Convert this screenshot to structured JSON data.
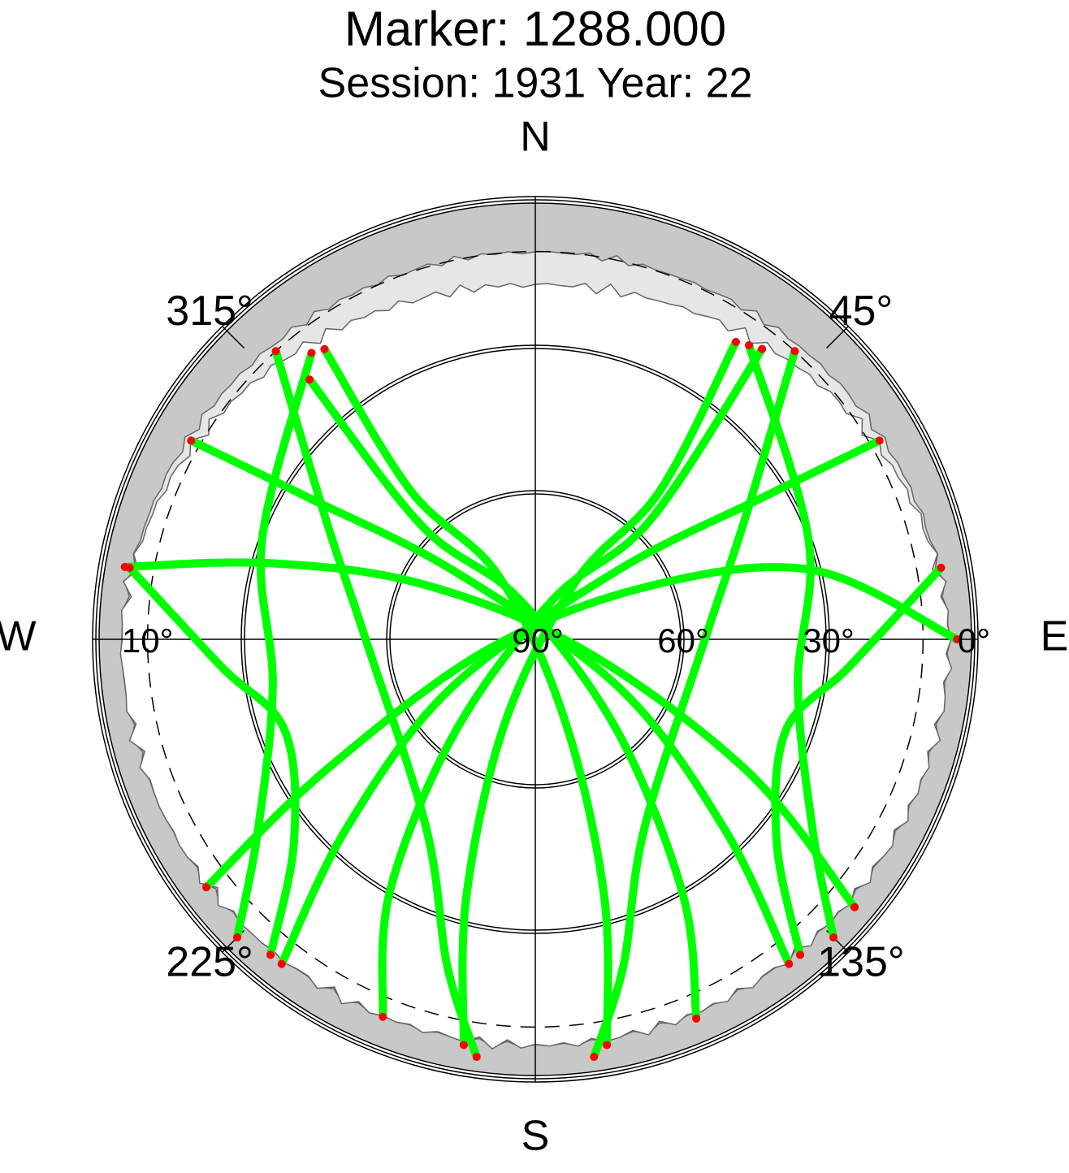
{
  "chart_data": {
    "type": "polar",
    "title": "Marker: 1288.000",
    "subtitle": "Session: 1931 Year: 22",
    "rlim": [
      90,
      0
    ],
    "cardinal": [
      {
        "value": 0,
        "label": "N"
      },
      {
        "value": 90,
        "label": "E"
      },
      {
        "value": 180,
        "label": "S"
      },
      {
        "value": 270,
        "label": "W"
      }
    ],
    "azimuth_ticks": [
      {
        "value": 45,
        "label": "45°"
      },
      {
        "value": 135,
        "label": "135°"
      },
      {
        "value": 225,
        "label": "225°"
      },
      {
        "value": 315,
        "label": "315°"
      }
    ],
    "elevation_ticks": [
      {
        "value": 0,
        "label": "0°"
      },
      {
        "value": 10,
        "label": "10°",
        "side": "W"
      },
      {
        "value": 30,
        "label": "30°"
      },
      {
        "value": 60,
        "label": "60°"
      },
      {
        "value": 90,
        "label": "90°"
      }
    ],
    "track_color": "#00ff00",
    "endpoint_color": "#ff0000",
    "series": [
      {
        "azimuth": [
          38,
          44,
          24,
          221,
          210,
          202
        ],
        "elevation": [
          14,
          56,
          81,
          65,
          30,
          6
        ]
      },
      {
        "azimuth": [
          319,
          315,
          338,
          138,
          150,
          157
        ],
        "elevation": [
          19,
          57,
          81,
          65,
          29,
          5
        ]
      },
      {
        "azimuth": [
          90,
          76,
          65,
          258,
          238,
          233
        ],
        "elevation": [
          3,
          31,
          64,
          80,
          39,
          5
        ]
      },
      {
        "azimuth": [
          280,
          286,
          296,
          102,
          122,
          130
        ],
        "elevation": [
          4,
          33,
          64,
          80,
          38,
          4
        ]
      },
      {
        "azimuth": [
          34,
          40,
          35,
          200,
          195,
          190
        ],
        "elevation": [
          16,
          50,
          75,
          72,
          35,
          5
        ]
      },
      {
        "azimuth": [
          324,
          320,
          330,
          160,
          165,
          170
        ],
        "elevation": [
          16,
          50,
          75,
          72,
          35,
          5
        ]
      },
      {
        "azimuth": [
          60,
          58,
          50,
          240,
          225,
          218
        ],
        "elevation": [
          8,
          35,
          68,
          70,
          35,
          5
        ]
      },
      {
        "azimuth": [
          300,
          302,
          310,
          120,
          135,
          142
        ],
        "elevation": [
          8,
          35,
          68,
          70,
          35,
          5
        ]
      },
      {
        "azimuth": [
          42,
          60,
          90,
          150,
          165,
          172
        ],
        "elevation": [
          10,
          40,
          55,
          45,
          20,
          3
        ]
      },
      {
        "azimuth": [
          318,
          300,
          270,
          210,
          195,
          188
        ],
        "elevation": [
          10,
          40,
          55,
          45,
          20,
          3
        ]
      },
      {
        "azimuth": [
          80,
          95,
          110,
          130,
          140
        ],
        "elevation": [
          5,
          25,
          35,
          25,
          5
        ]
      },
      {
        "azimuth": [
          280,
          265,
          250,
          230,
          220
        ],
        "elevation": [
          5,
          25,
          35,
          25,
          5
        ]
      },
      {
        "azimuth": [
          36,
          70,
          100,
          125,
          135
        ],
        "elevation": [
          15,
          30,
          35,
          20,
          3
        ]
      },
      {
        "azimuth": [
          322,
          290,
          260,
          235,
          225
        ],
        "elevation": [
          15,
          30,
          35,
          20,
          3
        ]
      }
    ]
  }
}
